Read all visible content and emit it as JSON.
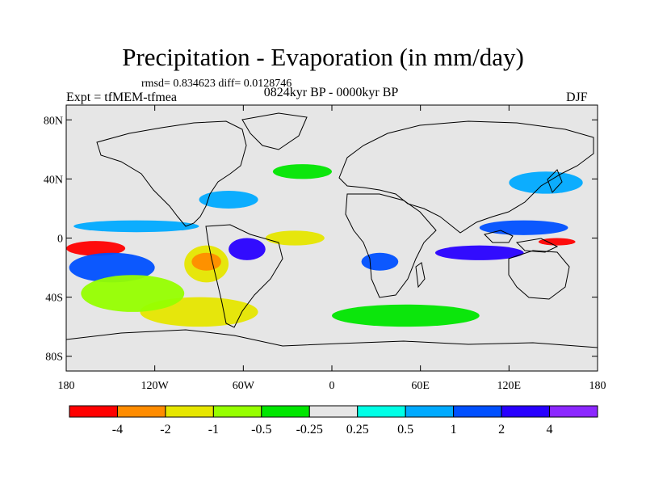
{
  "chart_data": {
    "type": "heatmap",
    "title": "Precipitation - Evaporation (in mm/day)",
    "stats": "rmsd= 0.834623 diff= 0.0128746",
    "experiment": "Expt = tfMEM-tfmea",
    "period": "0824kyr BP - 0000kyr BP",
    "season": "DJF",
    "x_ticks": [
      "180",
      "120W",
      "60W",
      "0",
      "60E",
      "120E",
      "180"
    ],
    "y_ticks": [
      "80N",
      "40N",
      "0",
      "40S",
      "80S"
    ],
    "xlim": [
      -180,
      180
    ],
    "ylim": [
      -90,
      90
    ],
    "colorbar": {
      "labels": [
        "-4",
        "-2",
        "-1",
        "-0.5",
        "-0.25",
        "0.25",
        "0.5",
        "1",
        "2",
        "4"
      ],
      "colors": [
        "#ff0000",
        "#ff8c00",
        "#e6e600",
        "#96ff00",
        "#00e600",
        "#e6e6e6",
        "#00ffe6",
        "#00aaff",
        "#0050ff",
        "#2800ff",
        "#8c28ff"
      ]
    },
    "regions": [
      {
        "lon": [
          -180,
          -140
        ],
        "lat": [
          -2,
          -12
        ],
        "color_index": 0
      },
      {
        "lon": [
          -178,
          -120
        ],
        "lat": [
          -10,
          -30
        ],
        "color_index": 8
      },
      {
        "lon": [
          -175,
          -90
        ],
        "lat": [
          12,
          4
        ],
        "color_index": 7
      },
      {
        "lon": [
          -100,
          -70
        ],
        "lat": [
          -5,
          -30
        ],
        "color_index": 2
      },
      {
        "lon": [
          -95,
          -75
        ],
        "lat": [
          -10,
          -22
        ],
        "color_index": 1
      },
      {
        "lon": [
          -70,
          -45
        ],
        "lat": [
          0,
          -15
        ],
        "color_index": 9
      },
      {
        "lon": [
          -90,
          -50
        ],
        "lat": [
          32,
          20
        ],
        "color_index": 7
      },
      {
        "lon": [
          -45,
          -5
        ],
        "lat": [
          5,
          -5
        ],
        "color_index": 2
      },
      {
        "lon": [
          20,
          45
        ],
        "lat": [
          -10,
          -22
        ],
        "color_index": 8
      },
      {
        "lon": [
          70,
          130
        ],
        "lat": [
          -5,
          -15
        ],
        "color_index": 9
      },
      {
        "lon": [
          100,
          160
        ],
        "lat": [
          12,
          2
        ],
        "color_index": 8
      },
      {
        "lon": [
          140,
          165
        ],
        "lat": [
          0,
          -5
        ],
        "color_index": 0
      },
      {
        "lon": [
          -130,
          -50
        ],
        "lat": [
          -40,
          -60
        ],
        "color_index": 2
      },
      {
        "lon": [
          -170,
          -100
        ],
        "lat": [
          -25,
          -50
        ],
        "color_index": 3
      },
      {
        "lon": [
          0,
          100
        ],
        "lat": [
          -45,
          -60
        ],
        "color_index": 4
      },
      {
        "lon": [
          -40,
          0
        ],
        "lat": [
          50,
          40
        ],
        "color_index": 4
      },
      {
        "lon": [
          120,
          170
        ],
        "lat": [
          45,
          30
        ],
        "color_index": 7
      }
    ]
  }
}
